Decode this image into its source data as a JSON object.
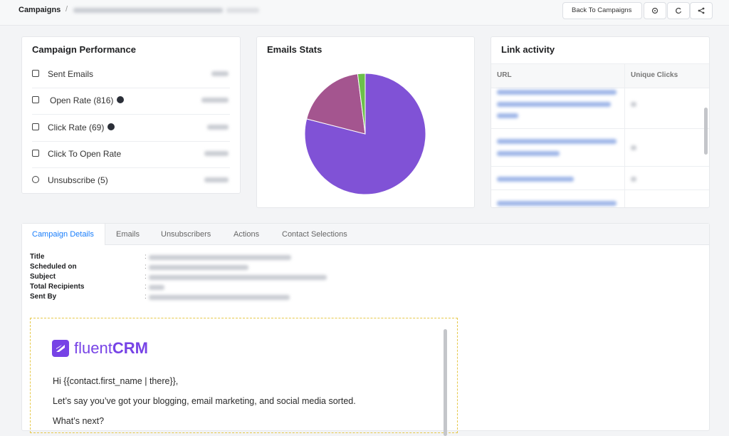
{
  "breadcrumb": {
    "root": "Campaigns",
    "divider": "/"
  },
  "toolbar": {
    "back": "Back To Campaigns"
  },
  "performance": {
    "title": "Campaign Performance",
    "rows": [
      "Sent Emails",
      "Open Rate (816)",
      "Click Rate (69)",
      "Click To Open Rate",
      "Unsubscribe (5)"
    ]
  },
  "email_stats": {
    "title": "Emails Stats",
    "pie": {
      "values": [
        79,
        19,
        2
      ],
      "colors": [
        "#8052d6",
        "#a4558f",
        "#6cc04a"
      ]
    }
  },
  "links": {
    "title": "Link activity",
    "columns": [
      "URL",
      "Unique Clicks"
    ]
  },
  "tabs": [
    "Campaign Details",
    "Emails",
    "Unsubscribers",
    "Actions",
    "Contact Selections"
  ],
  "details": {
    "labels": [
      "Title",
      "Scheduled on",
      "Subject",
      "Total Recipients",
      "Sent By"
    ],
    "separator": ":"
  },
  "preview": {
    "logo": {
      "light": "fluent",
      "bold": "CRM"
    },
    "lines": [
      "Hi {{contact.first_name | there}},",
      "Let’s say you’ve got your blogging, email marketing, and social media sorted.",
      "What’s next?"
    ]
  }
}
